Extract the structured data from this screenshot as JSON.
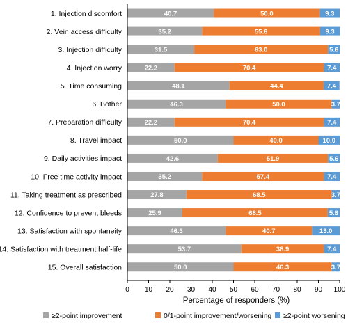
{
  "chart_data": {
    "type": "bar",
    "orientation": "horizontal",
    "stacked": true,
    "categories": [
      "1. Injection discomfort",
      "2. Vein access difficulty",
      "3. Injection difficulty",
      "4. Injection worry",
      "5. Time consuming",
      "6. Bother",
      "7. Preparation difficulty",
      "8. Travel impact",
      "9. Daily activities impact",
      "10. Free time activity impact",
      "11. Taking treatment as prescribed",
      "12. Confidence to prevent bleeds",
      "13. Satisfaction with spontaneity",
      "14. Satisfaction with treatment half-life",
      "15. Overall satisfaction"
    ],
    "series": [
      {
        "name": "≥2-point improvement",
        "color": "#A5A5A5",
        "values": [
          40.7,
          35.2,
          31.5,
          22.2,
          48.1,
          46.3,
          22.2,
          50.0,
          42.6,
          35.2,
          27.8,
          25.9,
          46.3,
          53.7,
          50.0
        ],
        "labels": [
          "40.7",
          "35.2",
          "31.5",
          "22.2",
          "48.1",
          "46.3",
          "22.2",
          "50.0",
          "42.6",
          "35.2",
          "27.8",
          "25.9",
          "46.3",
          "53.7",
          "50.0"
        ]
      },
      {
        "name": "0/1-point improvement/worsening",
        "color": "#ED7D31",
        "values": [
          50.0,
          55.6,
          63.0,
          70.4,
          44.4,
          50.0,
          70.4,
          40.0,
          51.9,
          57.4,
          68.5,
          68.5,
          40.7,
          38.9,
          46.3
        ],
        "labels": [
          "50.0",
          "55.6",
          "63.0",
          "70.4",
          "44.4",
          "50.0",
          "70.4",
          "40.0",
          "51.9",
          "57.4",
          "68.5",
          "68.5",
          "40.7",
          "38.9",
          "46.3"
        ]
      },
      {
        "name": "≥2-point worsening",
        "color": "#5B9BD5",
        "values": [
          9.3,
          9.3,
          5.6,
          7.4,
          7.4,
          3.7,
          7.4,
          10.0,
          5.6,
          7.4,
          3.7,
          5.6,
          13.0,
          7.4,
          3.7
        ],
        "labels": [
          "9.3",
          "9.3",
          "5.6",
          "7.4",
          "7.4",
          "3.7",
          "7.4",
          "10.0",
          "5.6",
          "7.4",
          "3.7",
          "5.6",
          "13.0",
          "7.4",
          "3.7"
        ]
      }
    ],
    "xlabel": "Percentage of responders (%)",
    "xlim": [
      0,
      100
    ],
    "xticks": [
      "0",
      "10",
      "20",
      "30",
      "40",
      "50",
      "60",
      "70",
      "80",
      "90",
      "100"
    ],
    "legend_position": "bottom",
    "grid": false
  }
}
